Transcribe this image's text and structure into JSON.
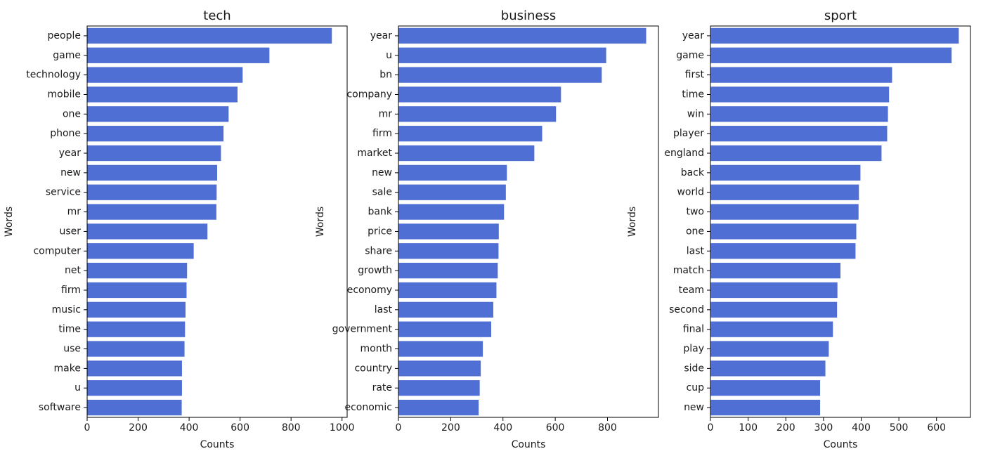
{
  "colors": {
    "bar": "#4f6fd4",
    "axis": "#000000",
    "text": "#1a1a1a"
  },
  "chart_data": [
    {
      "type": "bar",
      "orientation": "horizontal",
      "title": "tech",
      "xlabel": "Counts",
      "ylabel": "Words",
      "xlim": [
        0,
        1020
      ],
      "xticks": [
        0,
        200,
        400,
        600,
        800,
        1000
      ],
      "categories": [
        "people",
        "game",
        "technology",
        "mobile",
        "one",
        "phone",
        "year",
        "new",
        "service",
        "mr",
        "user",
        "computer",
        "net",
        "firm",
        "music",
        "time",
        "use",
        "make",
        "u",
        "software"
      ],
      "values": [
        960,
        715,
        610,
        590,
        555,
        535,
        525,
        510,
        508,
        507,
        472,
        418,
        392,
        390,
        386,
        384,
        382,
        372,
        372,
        371
      ]
    },
    {
      "type": "bar",
      "orientation": "horizontal",
      "title": "business",
      "xlabel": "Counts",
      "ylabel": "Words",
      "xlim": [
        0,
        995
      ],
      "xticks": [
        0,
        200,
        400,
        600,
        800
      ],
      "categories": [
        "year",
        "u",
        "bn",
        "company",
        "mr",
        "firm",
        "market",
        "new",
        "sale",
        "bank",
        "price",
        "share",
        "growth",
        "economy",
        "last",
        "government",
        "month",
        "country",
        "rate",
        "economic"
      ],
      "values": [
        948,
        795,
        778,
        622,
        603,
        550,
        520,
        415,
        411,
        404,
        384,
        383,
        380,
        375,
        363,
        355,
        323,
        315,
        311,
        307
      ]
    },
    {
      "type": "bar",
      "orientation": "horizontal",
      "title": "sport",
      "xlabel": "Counts",
      "ylabel": "Words",
      "xlim": [
        0,
        690
      ],
      "xticks": [
        0,
        100,
        200,
        300,
        400,
        500,
        600
      ],
      "categories": [
        "year",
        "game",
        "first",
        "time",
        "win",
        "player",
        "england",
        "back",
        "world",
        "two",
        "one",
        "last",
        "match",
        "team",
        "second",
        "final",
        "play",
        "side",
        "cup",
        "new"
      ],
      "values": [
        659,
        640,
        482,
        474,
        471,
        469,
        454,
        398,
        394,
        393,
        387,
        385,
        345,
        337,
        336,
        325,
        314,
        305,
        291,
        291
      ]
    }
  ]
}
